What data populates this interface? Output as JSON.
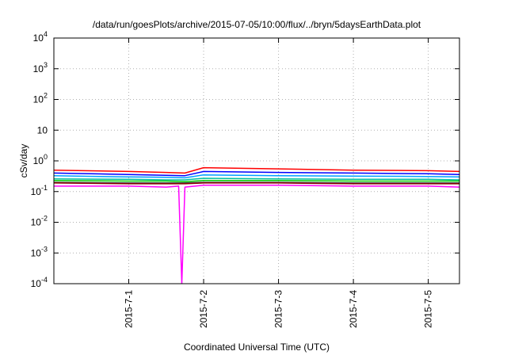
{
  "chart_data": {
    "type": "line",
    "title": "/data/run/goesPlots/archive/2015-07-05/10:00/flux/../bryn/5daysEarthData.plot",
    "xlabel": "Coordinated Universal Time (UTC)",
    "ylabel": "cSv/day",
    "y_scale": "log",
    "ylim": [
      0.0001,
      10000
    ],
    "xlim": [
      "2015-06-30T00:00",
      "2015-07-05T10:00"
    ],
    "grid": true,
    "legend": "none",
    "y_ticks": [
      {
        "value": 0.0001,
        "base": "10",
        "exp": "-4"
      },
      {
        "value": 0.001,
        "base": "10",
        "exp": "-3"
      },
      {
        "value": 0.01,
        "base": "10",
        "exp": "-2"
      },
      {
        "value": 0.1,
        "base": "10",
        "exp": "-1"
      },
      {
        "value": 1,
        "base": "10",
        "exp": "0"
      },
      {
        "value": 10,
        "base": "10",
        "exp": ""
      },
      {
        "value": 100,
        "base": "10",
        "exp": "2"
      },
      {
        "value": 1000,
        "base": "10",
        "exp": "3"
      },
      {
        "value": 10000,
        "base": "10",
        "exp": "4"
      }
    ],
    "x_ticks": [
      {
        "value": "2015-07-01",
        "label": "2015-7-1"
      },
      {
        "value": "2015-07-02",
        "label": "2015-7-2"
      },
      {
        "value": "2015-07-03",
        "label": "2015-7-3"
      },
      {
        "value": "2015-07-04",
        "label": "2015-7-4"
      },
      {
        "value": "2015-07-05",
        "label": "2015-7-5"
      }
    ],
    "series": [
      {
        "color": "#ff0000",
        "x": [
          "2015-06-30",
          "2015-07-01",
          "2015-07-01T12:00",
          "2015-07-01T18:00",
          "2015-07-02",
          "2015-07-03",
          "2015-07-04",
          "2015-07-05",
          "2015-07-05T10:00"
        ],
        "y": [
          0.5,
          0.45,
          0.42,
          0.4,
          0.6,
          0.55,
          0.5,
          0.48,
          0.45
        ]
      },
      {
        "color": "#0000ff",
        "x": [
          "2015-06-30",
          "2015-07-01",
          "2015-07-01T12:00",
          "2015-07-01T18:00",
          "2015-07-02",
          "2015-07-03",
          "2015-07-04",
          "2015-07-05",
          "2015-07-05T10:00"
        ],
        "y": [
          0.4,
          0.36,
          0.34,
          0.33,
          0.45,
          0.42,
          0.4,
          0.38,
          0.36
        ]
      },
      {
        "color": "#00a0ff",
        "x": [
          "2015-06-30",
          "2015-07-01",
          "2015-07-01T12:00",
          "2015-07-01T18:00",
          "2015-07-02",
          "2015-07-03",
          "2015-07-04",
          "2015-07-05",
          "2015-07-05T10:00"
        ],
        "y": [
          0.33,
          0.3,
          0.29,
          0.28,
          0.35,
          0.33,
          0.32,
          0.31,
          0.3
        ]
      },
      {
        "color": "#00c0a0",
        "x": [
          "2015-06-30",
          "2015-07-01",
          "2015-07-01T12:00",
          "2015-07-01T18:00",
          "2015-07-02",
          "2015-07-03",
          "2015-07-04",
          "2015-07-05",
          "2015-07-05T10:00"
        ],
        "y": [
          0.26,
          0.25,
          0.24,
          0.24,
          0.27,
          0.26,
          0.25,
          0.25,
          0.24
        ]
      },
      {
        "color": "#00cc00",
        "x": [
          "2015-06-30",
          "2015-07-01",
          "2015-07-01T12:00",
          "2015-07-01T18:00",
          "2015-07-02",
          "2015-07-03",
          "2015-07-04",
          "2015-07-05",
          "2015-07-05T10:00"
        ],
        "y": [
          0.23,
          0.22,
          0.22,
          0.21,
          0.23,
          0.23,
          0.22,
          0.22,
          0.22
        ]
      },
      {
        "color": "#404040",
        "x": [
          "2015-06-30",
          "2015-07-01",
          "2015-07-01T12:00",
          "2015-07-01T18:00",
          "2015-07-02",
          "2015-07-03",
          "2015-07-04",
          "2015-07-05",
          "2015-07-05T10:00"
        ],
        "y": [
          0.2,
          0.19,
          0.19,
          0.19,
          0.2,
          0.2,
          0.19,
          0.19,
          0.19
        ]
      },
      {
        "color": "#8b0000",
        "x": [
          "2015-06-30",
          "2015-07-01",
          "2015-07-01T12:00",
          "2015-07-01T18:00",
          "2015-07-02",
          "2015-07-03",
          "2015-07-04",
          "2015-07-05",
          "2015-07-05T10:00"
        ],
        "y": [
          0.19,
          0.18,
          0.18,
          0.18,
          0.19,
          0.19,
          0.18,
          0.18,
          0.18
        ]
      },
      {
        "color": "#ff00ff",
        "x": [
          "2015-06-30",
          "2015-07-01",
          "2015-07-01T12:00",
          "2015-07-01T16:00",
          "2015-07-01T17:00",
          "2015-07-01T18:00",
          "2015-07-02",
          "2015-07-03",
          "2015-07-04",
          "2015-07-05",
          "2015-07-05T10:00"
        ],
        "y": [
          0.15,
          0.15,
          0.14,
          0.15,
          0.0001,
          0.14,
          0.16,
          0.16,
          0.15,
          0.15,
          0.14
        ]
      }
    ]
  }
}
